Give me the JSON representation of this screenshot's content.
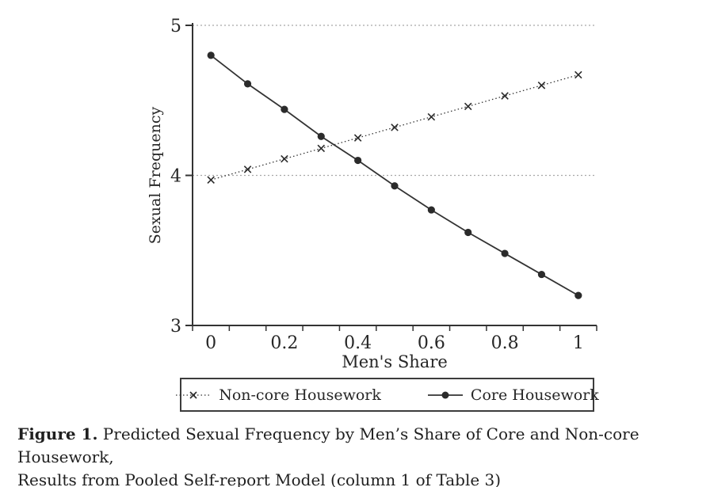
{
  "caption": {
    "label": "Figure 1.",
    "line1": "Predicted Sexual Frequency by Men’s Share of Core and Non-core Housework,",
    "line2": "Results from Pooled Self-report Model (column 1 of Table 3)"
  },
  "colors": {
    "line": "#333333",
    "marker": "#2b2b2b",
    "grid": "#a8a8a8",
    "text": "#262626",
    "legend_border": "#3c3c3c",
    "background": "#ffffff"
  },
  "chart_data": {
    "type": "line",
    "title": "",
    "xlabel": "Men's Share",
    "ylabel": "Sexual Frequency",
    "x": [
      0,
      0.1,
      0.2,
      0.3,
      0.4,
      0.5,
      0.6,
      0.7,
      0.8,
      0.9,
      1
    ],
    "xtick_labels": [
      "0",
      "0.2",
      "0.4",
      "0.6",
      "0.8",
      "1"
    ],
    "ylim": [
      3,
      5
    ],
    "yticks": [
      3,
      4,
      5
    ],
    "gridlines_y": [
      4,
      5
    ],
    "grid": "horizontal-dotted",
    "legend_position": "bottom-box",
    "series": [
      {
        "name": "Non-core Housework",
        "marker": "x",
        "line": "dotted",
        "values": [
          3.97,
          4.04,
          4.11,
          4.18,
          4.25,
          4.32,
          4.39,
          4.46,
          4.53,
          4.6,
          4.67
        ]
      },
      {
        "name": "Core Housework",
        "marker": "circle",
        "line": "solid",
        "values": [
          4.8,
          4.61,
          4.44,
          4.26,
          4.1,
          3.93,
          3.77,
          3.62,
          3.48,
          3.34,
          3.2
        ]
      }
    ]
  }
}
